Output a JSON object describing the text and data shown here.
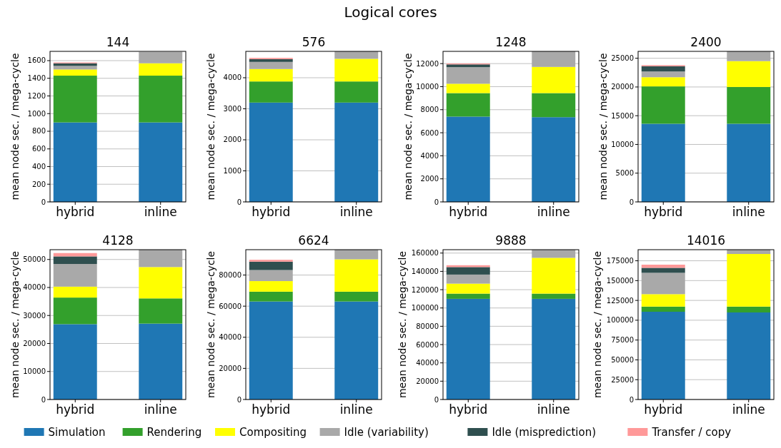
{
  "chart_data": [
    {
      "type": "bar",
      "stacked": true,
      "title": "144",
      "ylabel": "mean node sec. / mega-cycle",
      "annotations": [
        "Logical cores"
      ],
      "legend": "bottom",
      "grid": "y",
      "categories": [
        "hybrid",
        "inline"
      ],
      "ylim": [
        0,
        1705
      ],
      "yticks": [
        0,
        200,
        400,
        600,
        800,
        1000,
        1200,
        1400,
        1600
      ],
      "series": [
        {
          "name": "Simulation",
          "color": "#1f77b4",
          "values": [
            900,
            900
          ]
        },
        {
          "name": "Rendering",
          "color": "#33a02c",
          "values": [
            530,
            530
          ]
        },
        {
          "name": "Compositing",
          "color": "#ffff00",
          "values": [
            70,
            140
          ]
        },
        {
          "name": "Idle (variability)",
          "color": "#a9a9a9",
          "values": [
            40,
            130
          ]
        },
        {
          "name": "Idle (misprediction)",
          "color": "#2f4f4f",
          "values": [
            30,
            null
          ]
        },
        {
          "name": "Transfer / copy",
          "color": "#ff9999",
          "values": [
            10,
            null
          ]
        }
      ]
    },
    {
      "type": "bar",
      "stacked": true,
      "title": "576",
      "ylabel": "mean node sec. / mega-cycle",
      "grid": "y",
      "categories": [
        "hybrid",
        "inline"
      ],
      "ylim": [
        0,
        4850
      ],
      "yticks": [
        0,
        1000,
        2000,
        3000,
        4000
      ],
      "series": [
        {
          "color": "#1f77b4",
          "values": [
            3200,
            3200
          ]
        },
        {
          "color": "#33a02c",
          "values": [
            680,
            680
          ]
        },
        {
          "color": "#ffff00",
          "values": [
            400,
            730
          ]
        },
        {
          "color": "#a9a9a9",
          "values": [
            230,
            240
          ]
        },
        {
          "color": "#2f4f4f",
          "values": [
            90,
            null
          ]
        },
        {
          "color": "#ff9999",
          "values": [
            40,
            null
          ]
        }
      ]
    },
    {
      "type": "bar",
      "stacked": true,
      "title": "1248",
      "ylabel": "mean node sec. / mega-cycle",
      "grid": "y",
      "categories": [
        "hybrid",
        "inline"
      ],
      "ylim": [
        0,
        13060
      ],
      "yticks": [
        0,
        2000,
        4000,
        6000,
        8000,
        10000,
        12000
      ],
      "series": [
        {
          "color": "#1f77b4",
          "values": [
            7400,
            7350
          ]
        },
        {
          "color": "#33a02c",
          "values": [
            2040,
            2090
          ]
        },
        {
          "color": "#ffff00",
          "values": [
            810,
            2270
          ]
        },
        {
          "color": "#a9a9a9",
          "values": [
            1440,
            1350
          ]
        },
        {
          "color": "#2f4f4f",
          "values": [
            240,
            null
          ]
        },
        {
          "color": "#ff9999",
          "values": [
            80,
            null
          ]
        }
      ]
    },
    {
      "type": "bar",
      "stacked": true,
      "title": "2400",
      "ylabel": "mean node sec. / mega-cycle",
      "grid": "y",
      "categories": [
        "hybrid",
        "inline"
      ],
      "ylim": [
        0,
        26200
      ],
      "yticks": [
        0,
        5000,
        10000,
        15000,
        20000,
        25000
      ],
      "series": [
        {
          "color": "#1f77b4",
          "values": [
            13600,
            13600
          ]
        },
        {
          "color": "#33a02c",
          "values": [
            6500,
            6400
          ]
        },
        {
          "color": "#ffff00",
          "values": [
            1600,
            4500
          ]
        },
        {
          "color": "#a9a9a9",
          "values": [
            1000,
            1700
          ]
        },
        {
          "color": "#2f4f4f",
          "values": [
            900,
            null
          ]
        },
        {
          "color": "#ff9999",
          "values": [
            200,
            null
          ]
        }
      ]
    },
    {
      "type": "bar",
      "stacked": true,
      "title": "4128",
      "ylabel": "mean node sec. / mega-cycle",
      "grid": "y",
      "categories": [
        "hybrid",
        "inline"
      ],
      "ylim": [
        0,
        53500
      ],
      "yticks": [
        0,
        10000,
        20000,
        30000,
        40000,
        50000
      ],
      "series": [
        {
          "color": "#1f77b4",
          "values": [
            26900,
            27100
          ]
        },
        {
          "color": "#33a02c",
          "values": [
            9500,
            9000
          ]
        },
        {
          "color": "#ffff00",
          "values": [
            3900,
            11200
          ]
        },
        {
          "color": "#a9a9a9",
          "values": [
            8100,
            6200
          ]
        },
        {
          "color": "#2f4f4f",
          "values": [
            2700,
            null
          ]
        },
        {
          "color": "#ff9999",
          "values": [
            1200,
            null
          ]
        }
      ]
    },
    {
      "type": "bar",
      "stacked": true,
      "title": "6624",
      "ylabel": "mean node sec. / mega-cycle",
      "grid": "y",
      "categories": [
        "hybrid",
        "inline"
      ],
      "ylim": [
        0,
        96300
      ],
      "yticks": [
        0,
        20000,
        40000,
        60000,
        80000
      ],
      "series": [
        {
          "color": "#1f77b4",
          "values": [
            63000,
            63000
          ]
        },
        {
          "color": "#33a02c",
          "values": [
            6300,
            6300
          ]
        },
        {
          "color": "#ffff00",
          "values": [
            6800,
            20800
          ]
        },
        {
          "color": "#a9a9a9",
          "values": [
            7100,
            6200
          ]
        },
        {
          "color": "#2f4f4f",
          "values": [
            5400,
            null
          ]
        },
        {
          "color": "#ff9999",
          "values": [
            1200,
            null
          ]
        }
      ]
    },
    {
      "type": "bar",
      "stacked": true,
      "title": "9888",
      "ylabel": "mean node sec. / mega-cycle",
      "grid": "y",
      "categories": [
        "hybrid",
        "inline"
      ],
      "ylim": [
        0,
        163700
      ],
      "yticks": [
        0,
        20000,
        40000,
        60000,
        80000,
        100000,
        120000,
        140000,
        160000
      ],
      "series": [
        {
          "color": "#1f77b4",
          "values": [
            110000,
            110000
          ]
        },
        {
          "color": "#33a02c",
          "values": [
            5700,
            5700
          ]
        },
        {
          "color": "#ffff00",
          "values": [
            10900,
            39100
          ]
        },
        {
          "color": "#a9a9a9",
          "values": [
            9900,
            8900
          ]
        },
        {
          "color": "#2f4f4f",
          "values": [
            8200,
            null
          ]
        },
        {
          "color": "#ff9999",
          "values": [
            2000,
            null
          ]
        }
      ]
    },
    {
      "type": "bar",
      "stacked": true,
      "title": "14016",
      "ylabel": "mean node sec. / mega-cycle",
      "grid": "y",
      "categories": [
        "hybrid",
        "inline"
      ],
      "ylim": [
        0,
        189000
      ],
      "yticks": [
        0,
        25000,
        50000,
        75000,
        100000,
        125000,
        150000,
        175000
      ],
      "series": [
        {
          "color": "#1f77b4",
          "values": [
            110700,
            109800
          ]
        },
        {
          "color": "#33a02c",
          "values": [
            6500,
            7400
          ]
        },
        {
          "color": "#ffff00",
          "values": [
            15700,
            66400
          ]
        },
        {
          "color": "#a9a9a9",
          "values": [
            26900,
            5400
          ]
        },
        {
          "color": "#2f4f4f",
          "values": [
            6300,
            null
          ]
        },
        {
          "color": "#ff9999",
          "values": [
            4000,
            null
          ]
        }
      ]
    }
  ]
}
